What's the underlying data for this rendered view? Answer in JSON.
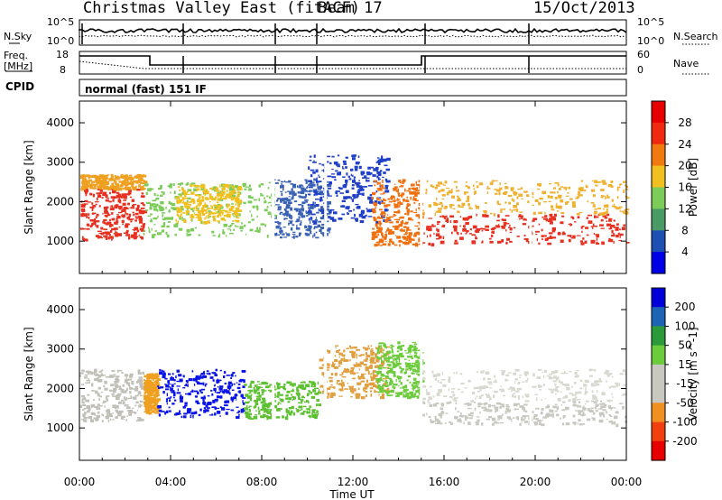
{
  "header": {
    "station": "Christmas Valley East (fitACF)",
    "beam": "Beam 17",
    "date": "15/Oct/2013"
  },
  "top_panels": {
    "nsky_label": "N.Sky",
    "nsearch_label": "N.Search",
    "noise_ticks_left": [
      "10^5",
      "10^0"
    ],
    "noise_ticks_right": [
      "10^5",
      "10^0"
    ],
    "freq_label_1": "Freq.",
    "freq_label_2": "[MHz]",
    "freq_ticks": [
      "18",
      "8"
    ],
    "nave_label": "Nave",
    "nave_ticks": [
      "60",
      "0"
    ],
    "cpid_label": "CPID",
    "cpid_text": "normal (fast) 151 IF"
  },
  "chart_data": [
    {
      "type": "heatmap",
      "title": "",
      "xlabel": "Time UT",
      "ylabel": "Slant Range [km]",
      "x_ticks": [
        "00:00",
        "04:00",
        "08:00",
        "12:00",
        "16:00",
        "20:00",
        "00:00"
      ],
      "xlim_hours": [
        0,
        24
      ],
      "y_ticks": [
        1000,
        2000,
        3000,
        4000
      ],
      "ylim": [
        180,
        4550
      ],
      "colorbar": {
        "label": "Power [dB]",
        "ticks": [
          28,
          24,
          20,
          16,
          12,
          8,
          4
        ],
        "range": [
          0,
          30
        ],
        "colors": [
          "#0000e6",
          "#1e50b4",
          "#4a9a66",
          "#7ccc5a",
          "#f0c020",
          "#f07a10",
          "#f02a10",
          "#e60000"
        ]
      },
      "scatter_regions": [
        {
          "t0": 0.0,
          "t1": 2.8,
          "r_low": 1050,
          "r_high": 2350,
          "color": "#e63020"
        },
        {
          "t0": 0.0,
          "t1": 2.8,
          "r_low": 2350,
          "r_high": 2700,
          "color": "#f0a020"
        },
        {
          "t0": 2.8,
          "t1": 8.5,
          "r_low": 1150,
          "r_high": 2500,
          "color": "#7ccc5a"
        },
        {
          "t0": 4.2,
          "t1": 7.0,
          "r_low": 1500,
          "r_high": 2450,
          "color": "#f0c020"
        },
        {
          "t0": 8.5,
          "t1": 11.0,
          "r_low": 1100,
          "r_high": 2600,
          "color": "#3a62b4"
        },
        {
          "t0": 10.0,
          "t1": 13.5,
          "r_low": 1500,
          "r_high": 3200,
          "color": "#2040c8"
        },
        {
          "t0": 12.8,
          "t1": 15.0,
          "r_low": 900,
          "r_high": 2600,
          "color": "#f07010"
        },
        {
          "t0": 15.0,
          "t1": 24.0,
          "r_low": 950,
          "r_high": 1700,
          "color": "#e63020"
        },
        {
          "t0": 15.0,
          "t1": 24.0,
          "r_low": 1700,
          "r_high": 2550,
          "color": "#f0b030"
        }
      ]
    },
    {
      "type": "heatmap",
      "title": "",
      "xlabel": "Time UT",
      "ylabel": "Slant Range [km]",
      "x_ticks": [
        "00:00",
        "04:00",
        "08:00",
        "12:00",
        "16:00",
        "20:00",
        "00:00"
      ],
      "xlim_hours": [
        0,
        24
      ],
      "y_ticks": [
        1000,
        2000,
        3000,
        4000
      ],
      "ylim": [
        180,
        4550
      ],
      "colorbar": {
        "label": "Velocity [m s^-1]",
        "ticks": [
          200,
          100,
          50,
          15,
          -15,
          -50,
          -100,
          -200
        ],
        "range": [
          -250,
          250
        ],
        "colors": [
          "#e60000",
          "#f04010",
          "#f09020",
          "#c8c8c0",
          "#c8c8c0",
          "#6ccc3c",
          "#2a9a3a",
          "#1e64b4",
          "#0000d8"
        ]
      },
      "scatter_regions": [
        {
          "t0": 0.0,
          "t1": 2.8,
          "r_low": 1200,
          "r_high": 2500,
          "color": "#c0c0b8"
        },
        {
          "t0": 2.8,
          "t1": 3.4,
          "r_low": 1400,
          "r_high": 2400,
          "color": "#f0a020"
        },
        {
          "t0": 3.4,
          "t1": 7.2,
          "r_low": 1300,
          "r_high": 2500,
          "color": "#0a14e6"
        },
        {
          "t0": 7.2,
          "t1": 10.5,
          "r_low": 1250,
          "r_high": 2200,
          "color": "#5cc030"
        },
        {
          "t0": 10.5,
          "t1": 13.5,
          "r_low": 1800,
          "r_high": 3100,
          "color": "#e0a040"
        },
        {
          "t0": 13.0,
          "t1": 15.0,
          "r_low": 1800,
          "r_high": 3200,
          "color": "#6ccc3c"
        },
        {
          "t0": 15.0,
          "t1": 24.0,
          "r_low": 1100,
          "r_high": 1700,
          "color": "#c8c8c0"
        },
        {
          "t0": 15.0,
          "t1": 24.0,
          "r_low": 1700,
          "r_high": 2500,
          "color": "#d8d8d0"
        }
      ]
    }
  ]
}
